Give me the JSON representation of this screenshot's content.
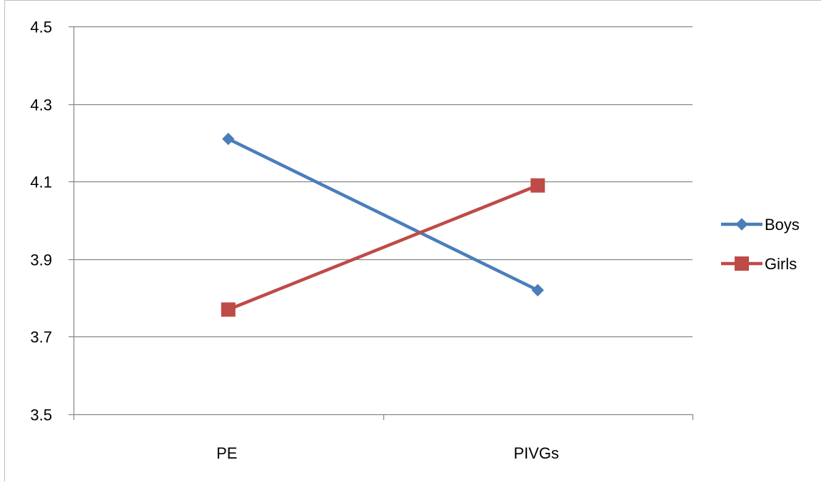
{
  "chart_data": {
    "type": "line",
    "title": "",
    "xlabel": "",
    "ylabel": "",
    "categories": [
      "PE",
      "PIVGs"
    ],
    "ylim": [
      3.5,
      4.5
    ],
    "yticks": [
      "3.5",
      "3.7",
      "3.9",
      "4.1",
      "4.3",
      "4.5"
    ],
    "grid": true,
    "legend_position": "right",
    "series": [
      {
        "name": "Boys",
        "values": [
          4.21,
          3.82
        ],
        "color": "#4a7ebb",
        "marker": "diamond"
      },
      {
        "name": "Girls",
        "values": [
          3.77,
          4.09
        ],
        "color": "#be4b48",
        "marker": "square"
      }
    ]
  }
}
